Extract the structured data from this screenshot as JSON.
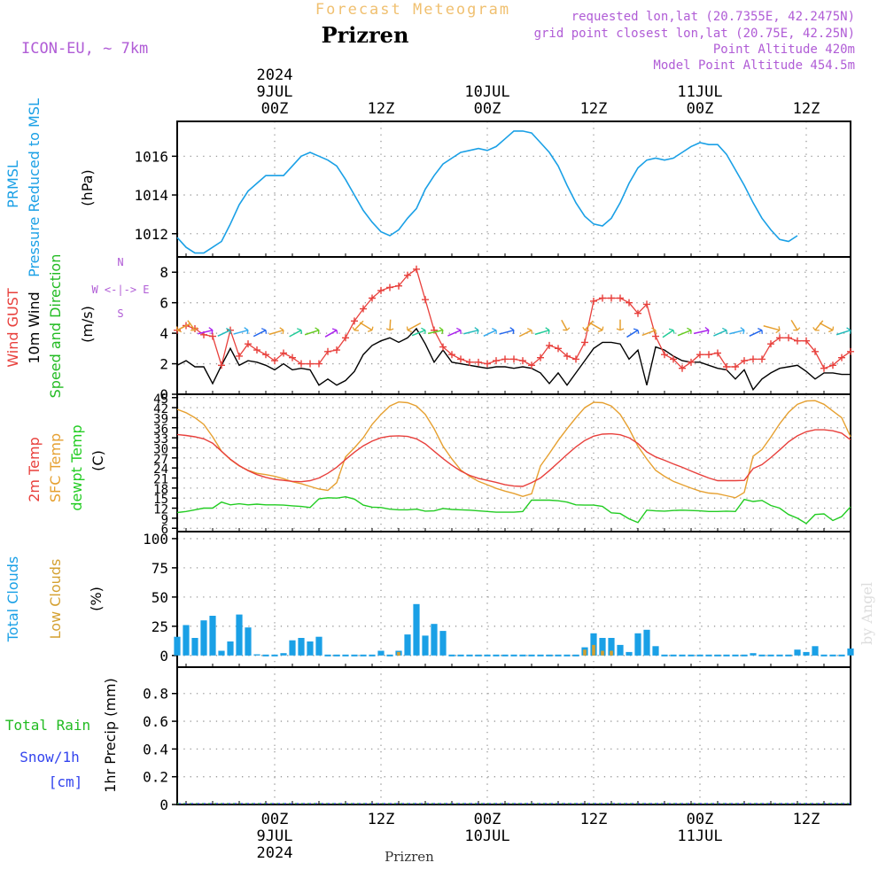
{
  "header": {
    "product": "Forecast Meteogram",
    "location": "Prizren",
    "model": "ICON-EU, ~ 7km",
    "requested": "requested lon,lat (20.7355E, 42.2475N)",
    "closest": "grid point closest lon,lat (20.75E, 42.25N)",
    "point_alt": "Point Altitude 420m",
    "model_alt": "Model Point Altitude 454.5m",
    "footer": "Prizren",
    "credit": "by Angel"
  },
  "colors": {
    "pressure": "#1aa0e6",
    "gust": "#e8403c",
    "wind": "#000000",
    "direction": "#22bb22",
    "t2m": "#e8403c",
    "sfc": "#e6a030",
    "dew": "#22cc22",
    "total_cloud": "#1aa0e6",
    "low_cloud": "#d4a030",
    "rain": "#22bb22",
    "snow": "#3344ee",
    "meta": "#b05cd6",
    "title_faint": "#f0c070"
  },
  "time_axis": {
    "top_labels": [
      {
        "h": 0,
        "lines": [
          "2024",
          "9JUL",
          "00Z"
        ]
      },
      {
        "h": 12,
        "lines": [
          "12Z"
        ]
      },
      {
        "h": 24,
        "lines": [
          "10JUL",
          "00Z"
        ]
      },
      {
        "h": 36,
        "lines": [
          "12Z"
        ]
      },
      {
        "h": 48,
        "lines": [
          "11JUL",
          "00Z"
        ]
      },
      {
        "h": 60,
        "lines": [
          "12Z"
        ]
      }
    ],
    "bottom_labels": [
      {
        "h": 0,
        "lines": [
          "00Z",
          "9JUL",
          "2024"
        ]
      },
      {
        "h": 12,
        "lines": [
          "12Z"
        ]
      },
      {
        "h": 24,
        "lines": [
          "00Z",
          "10JUL"
        ]
      },
      {
        "h": 36,
        "lines": [
          "12Z"
        ]
      },
      {
        "h": 48,
        "lines": [
          "00Z",
          "11JUL"
        ]
      },
      {
        "h": 60,
        "lines": [
          "12Z"
        ]
      }
    ]
  },
  "chart_data": [
    {
      "type": "line",
      "title": "PRMSL Pressure Reduced to MSL",
      "ylabel_lines": [
        "PRMSL",
        "Pressure Reduced to MSL"
      ],
      "unit": "(hPa)",
      "ylim": [
        1010.8,
        1017.8
      ],
      "yticks": [
        1012,
        1014,
        1016
      ],
      "x_hours": [
        -11,
        -10,
        -9,
        -8,
        -7,
        -6,
        -5,
        -4,
        -3,
        -2,
        -1,
        0,
        1,
        2,
        3,
        4,
        5,
        6,
        7,
        8,
        9,
        10,
        11,
        12,
        13,
        14,
        15,
        16,
        17,
        18,
        19,
        20,
        21,
        22,
        23,
        24,
        25,
        26,
        27,
        28,
        29,
        30,
        31,
        32,
        33,
        34,
        35,
        36,
        37,
        38,
        39,
        40,
        41,
        42,
        43,
        44,
        45,
        46,
        47,
        48,
        49,
        50,
        51,
        52,
        53,
        54,
        55,
        56,
        57,
        58,
        59,
        60,
        61,
        62,
        63,
        64,
        65
      ],
      "series": [
        {
          "name": "PRMSL",
          "values": [
            1011.8,
            1011.3,
            1011.0,
            1011.0,
            1011.3,
            1011.6,
            1012.5,
            1013.5,
            1014.2,
            1014.6,
            1015.0,
            1015.0,
            1015.0,
            1015.5,
            1016.0,
            1016.2,
            1016.0,
            1015.8,
            1015.5,
            1014.8,
            1014.0,
            1013.2,
            1012.6,
            1012.1,
            1011.9,
            1012.2,
            1012.8,
            1013.3,
            1014.3,
            1015.0,
            1015.6,
            1015.9,
            1016.2,
            1016.3,
            1016.4,
            1016.3,
            1016.5,
            1016.9,
            1017.3,
            1017.3,
            1017.2,
            1016.7,
            1016.2,
            1015.5,
            1014.5,
            1013.6,
            1012.9,
            1012.5,
            1012.4,
            1012.8,
            1013.6,
            1014.6,
            1015.4,
            1015.8,
            1015.9,
            1015.8,
            1015.9,
            1016.2,
            1016.5,
            1016.7,
            1016.6,
            1016.6,
            1016.1,
            1015.3,
            1014.5,
            1013.6,
            1012.8,
            1012.2,
            1011.7,
            1011.6,
            1011.9
          ]
        }
      ]
    },
    {
      "type": "line",
      "title": "Wind GUST / 10m Wind Speed and Direction",
      "ylabel_lines": [
        "Wind GUST",
        "10m Wind",
        "Speed and Direction"
      ],
      "unit": "(m/s)",
      "compass": [
        "N",
        "W <-|-> E",
        "S"
      ],
      "ylim": [
        0,
        9
      ],
      "yticks": [
        0,
        2,
        4,
        6,
        8
      ],
      "x_hours": [
        -11,
        -10,
        -9,
        -8,
        -7,
        -6,
        -5,
        -4,
        -3,
        -2,
        -1,
        0,
        1,
        2,
        3,
        4,
        5,
        6,
        7,
        8,
        9,
        10,
        11,
        12,
        13,
        14,
        15,
        16,
        17,
        18,
        19,
        20,
        21,
        22,
        23,
        24,
        25,
        26,
        27,
        28,
        29,
        30,
        31,
        32,
        33,
        34,
        35,
        36,
        37,
        38,
        39,
        40,
        41,
        42,
        43,
        44,
        45,
        46,
        47,
        48,
        49,
        50,
        51,
        52,
        53,
        54,
        55,
        56,
        57,
        58,
        59,
        60,
        61,
        62,
        63,
        64,
        65
      ],
      "series": [
        {
          "name": "Wind GUST",
          "values": [
            4.2,
            4.5,
            4.3,
            3.9,
            3.8,
            1.9,
            4.2,
            2.5,
            3.3,
            2.9,
            2.6,
            2.2,
            2.7,
            2.4,
            2.0,
            2.0,
            2.0,
            2.8,
            2.9,
            3.7,
            4.8,
            5.6,
            6.3,
            6.8,
            7.0,
            7.1,
            7.8,
            8.2,
            6.2,
            4.2,
            3.1,
            2.6,
            2.3,
            2.1,
            2.1,
            2.0,
            2.2,
            2.3,
            2.3,
            2.2,
            1.9,
            2.4,
            3.2,
            3.0,
            2.5,
            2.3,
            3.4,
            6.1,
            6.3,
            6.3,
            6.3,
            6.0,
            5.3,
            5.9,
            3.8,
            2.6,
            2.3,
            1.7,
            2.1,
            2.6,
            2.6,
            2.7,
            1.8,
            1.8,
            2.2,
            2.3,
            2.3,
            3.3,
            3.7,
            3.7,
            3.5,
            3.5,
            2.8,
            1.7,
            1.9,
            2.4,
            2.8
          ]
        },
        {
          "name": "10m Wind",
          "values": [
            1.9,
            2.2,
            1.8,
            1.8,
            0.7,
            1.9,
            3.0,
            1.9,
            2.2,
            2.1,
            1.9,
            1.6,
            2.0,
            1.6,
            1.7,
            1.6,
            0.6,
            1.0,
            0.6,
            0.9,
            1.5,
            2.6,
            3.2,
            3.5,
            3.7,
            3.4,
            3.7,
            4.3,
            3.3,
            2.1,
            2.9,
            2.1,
            2.0,
            1.9,
            1.8,
            1.7,
            1.8,
            1.8,
            1.7,
            1.8,
            1.7,
            1.4,
            0.7,
            1.4,
            0.6,
            1.4,
            2.2,
            3.0,
            3.4,
            3.4,
            3.3,
            2.3,
            2.9,
            0.6,
            3.1,
            2.9,
            2.5,
            2.2,
            2.1,
            2.1,
            1.9,
            1.7,
            1.6,
            1.0,
            1.6,
            0.3,
            1.0,
            1.4,
            1.7,
            1.8,
            1.9,
            1.5,
            1.0,
            1.4,
            1.4,
            1.3,
            1.3
          ]
        }
      ]
    },
    {
      "type": "line",
      "title": "2m Temp / SFC Temp / dewpt Temp",
      "ylabel_lines": [
        "2m Temp",
        "SFC Temp",
        "dewpt Temp"
      ],
      "unit": "(C)",
      "ylim": [
        5,
        46
      ],
      "yticks": [
        6,
        9,
        12,
        15,
        18,
        21,
        24,
        27,
        30,
        33,
        36,
        39,
        42,
        45
      ],
      "x_hours": [
        -11,
        -10,
        -9,
        -8,
        -7,
        -6,
        -5,
        -4,
        -3,
        -2,
        -1,
        0,
        1,
        2,
        3,
        4,
        5,
        6,
        7,
        8,
        9,
        10,
        11,
        12,
        13,
        14,
        15,
        16,
        17,
        18,
        19,
        20,
        21,
        22,
        23,
        24,
        25,
        26,
        27,
        28,
        29,
        30,
        31,
        32,
        33,
        34,
        35,
        36,
        37,
        38,
        39,
        40,
        41,
        42,
        43,
        44,
        45,
        46,
        47,
        48,
        49,
        50,
        51,
        52,
        53,
        54,
        55,
        56,
        57,
        58,
        59,
        60,
        61,
        62,
        63,
        64,
        65
      ],
      "series": [
        {
          "name": "2m Temp",
          "values": [
            34.0,
            33.7,
            33.3,
            32.7,
            31.4,
            29.0,
            26.6,
            24.7,
            23.2,
            22.0,
            21.2,
            20.6,
            20.3,
            20.0,
            19.9,
            20.2,
            21.0,
            22.4,
            24.2,
            26.5,
            28.7,
            30.6,
            32.0,
            33.0,
            33.5,
            33.6,
            33.4,
            32.7,
            31.2,
            29.0,
            26.8,
            24.8,
            23.1,
            21.8,
            20.9,
            20.3,
            19.7,
            19.0,
            18.6,
            18.5,
            19.6,
            21.0,
            23.2,
            25.6,
            28.0,
            30.3,
            32.2,
            33.5,
            34.1,
            34.2,
            33.9,
            33.0,
            31.3,
            28.8,
            27.3,
            26.3,
            25.2,
            24.2,
            23.1,
            22.0,
            21.0,
            20.2,
            20.2,
            20.2,
            20.3,
            23.8,
            25.0,
            27.1,
            29.4,
            31.8,
            33.6,
            34.8,
            35.4,
            35.4,
            35.1,
            34.4,
            32.4
          ]
        },
        {
          "name": "SFC Temp",
          "values": [
            41.5,
            40.5,
            39.0,
            37.0,
            33.3,
            29.0,
            26.5,
            24.6,
            23.3,
            22.4,
            22.0,
            21.5,
            20.8,
            19.9,
            19.3,
            18.5,
            17.7,
            17.3,
            19.6,
            27.3,
            30.0,
            33.0,
            37.0,
            40.0,
            42.5,
            43.7,
            43.5,
            42.5,
            40.0,
            35.7,
            30.5,
            26.7,
            23.4,
            21.5,
            20.0,
            19.0,
            17.9,
            17.1,
            16.4,
            15.5,
            16.3,
            24.6,
            28.3,
            32.2,
            35.7,
            39.0,
            42.0,
            43.6,
            43.5,
            42.5,
            40.0,
            35.7,
            30.5,
            26.7,
            23.3,
            21.5,
            20.0,
            19.0,
            18.0,
            17.1,
            16.5,
            16.3,
            15.7,
            15.1,
            16.7,
            27.5,
            29.5,
            33.2,
            37.2,
            40.6,
            43.0,
            44.0,
            44.1,
            43.0,
            41.0,
            39.0,
            33.3
          ]
        },
        {
          "name": "dewpt Temp",
          "values": [
            10.7,
            11.0,
            11.5,
            12.0,
            12.0,
            13.8,
            13.0,
            13.3,
            13.0,
            13.2,
            13.0,
            13.0,
            12.9,
            12.7,
            12.5,
            12.2,
            14.8,
            15.1,
            15.0,
            15.4,
            14.7,
            12.9,
            12.3,
            12.2,
            11.7,
            11.5,
            11.5,
            11.7,
            11.1,
            11.2,
            11.9,
            11.6,
            11.5,
            11.4,
            11.2,
            11.0,
            10.8,
            10.8,
            10.8,
            11.0,
            14.4,
            14.4,
            14.4,
            14.2,
            13.8,
            13.0,
            12.9,
            12.9,
            12.5,
            10.6,
            10.4,
            8.8,
            7.7,
            11.4,
            11.2,
            11.1,
            11.3,
            11.4,
            11.3,
            11.2,
            11.0,
            11.0,
            11.1,
            11.0,
            14.6,
            14.0,
            14.3,
            12.8,
            12.0,
            10.1,
            9.0,
            7.4,
            10.1,
            10.3,
            8.3,
            9.5,
            12.4
          ]
        }
      ]
    },
    {
      "type": "bar",
      "title": "Total Clouds / Low Clouds",
      "ylabel_lines": [
        "Total Clouds",
        "Low Clouds"
      ],
      "unit": "(%)",
      "ylim": [
        -10,
        106
      ],
      "yticks": [
        0,
        25,
        50,
        75,
        100
      ],
      "x_hours": [
        -11,
        -10,
        -9,
        -8,
        -7,
        -6,
        -5,
        -4,
        -3,
        -2,
        -1,
        0,
        1,
        2,
        3,
        4,
        5,
        6,
        7,
        8,
        9,
        10,
        11,
        12,
        13,
        14,
        15,
        16,
        17,
        18,
        19,
        20,
        21,
        22,
        23,
        24,
        25,
        26,
        27,
        28,
        29,
        30,
        31,
        32,
        33,
        34,
        35,
        36,
        37,
        38,
        39,
        40,
        41,
        42,
        43,
        44,
        45,
        46,
        47,
        48,
        49,
        50,
        51,
        52,
        53,
        54,
        55,
        56,
        57,
        58,
        59,
        60,
        61,
        62,
        63,
        64,
        65
      ],
      "series": [
        {
          "name": "Total Clouds",
          "values": [
            16,
            26,
            15,
            30,
            34,
            4,
            12,
            35,
            24,
            1,
            0,
            0,
            2,
            13,
            15,
            12,
            16,
            0,
            0,
            0,
            0,
            0,
            0,
            4,
            0,
            4,
            18,
            44,
            17,
            27,
            21,
            0,
            0,
            0,
            0,
            0,
            0,
            0,
            0,
            0,
            0,
            0,
            0,
            0,
            0,
            0,
            7,
            19,
            15,
            15,
            9,
            3,
            19,
            22,
            8,
            0,
            0,
            0,
            0,
            0,
            0,
            0,
            0,
            0,
            0,
            2,
            0,
            0,
            0,
            0,
            5,
            3,
            8,
            0,
            0,
            0,
            6
          ]
        },
        {
          "name": "Low Clouds",
          "values": [
            0,
            0,
            0,
            0,
            0,
            0,
            0,
            0,
            0,
            0,
            0,
            0,
            0,
            0,
            0,
            0,
            0,
            0,
            0,
            0,
            0,
            0,
            0,
            0,
            0,
            3,
            0,
            0,
            0,
            0,
            0,
            0,
            0,
            0,
            0,
            0,
            0,
            0,
            0,
            0,
            0,
            0,
            0,
            0,
            0,
            0,
            5,
            9,
            4,
            4,
            0,
            0,
            0,
            0,
            0,
            0,
            0,
            0,
            0,
            0,
            0,
            0,
            0,
            0,
            0,
            0,
            0,
            0,
            0,
            0,
            0,
            0,
            0,
            0,
            0,
            0,
            0
          ]
        }
      ]
    },
    {
      "type": "line",
      "title": "Total Rain / Snow/1h",
      "ylabel_lines": [
        "Total Rain",
        "Snow/1h",
        "[cm]"
      ],
      "unit": "1hr Precip (mm)",
      "ylim": [
        0,
        0.99
      ],
      "yticks": [
        0,
        0.2,
        0.4,
        0.6,
        0.8
      ],
      "ytick_labels": [
        "0",
        "0.2",
        "0.4",
        "0.6",
        "0.8"
      ],
      "x_hours": [
        -11,
        65
      ],
      "series": [
        {
          "name": "Total Rain",
          "values": [
            0,
            0
          ]
        },
        {
          "name": "Snow/1h",
          "values": [
            0,
            0
          ]
        }
      ]
    }
  ]
}
